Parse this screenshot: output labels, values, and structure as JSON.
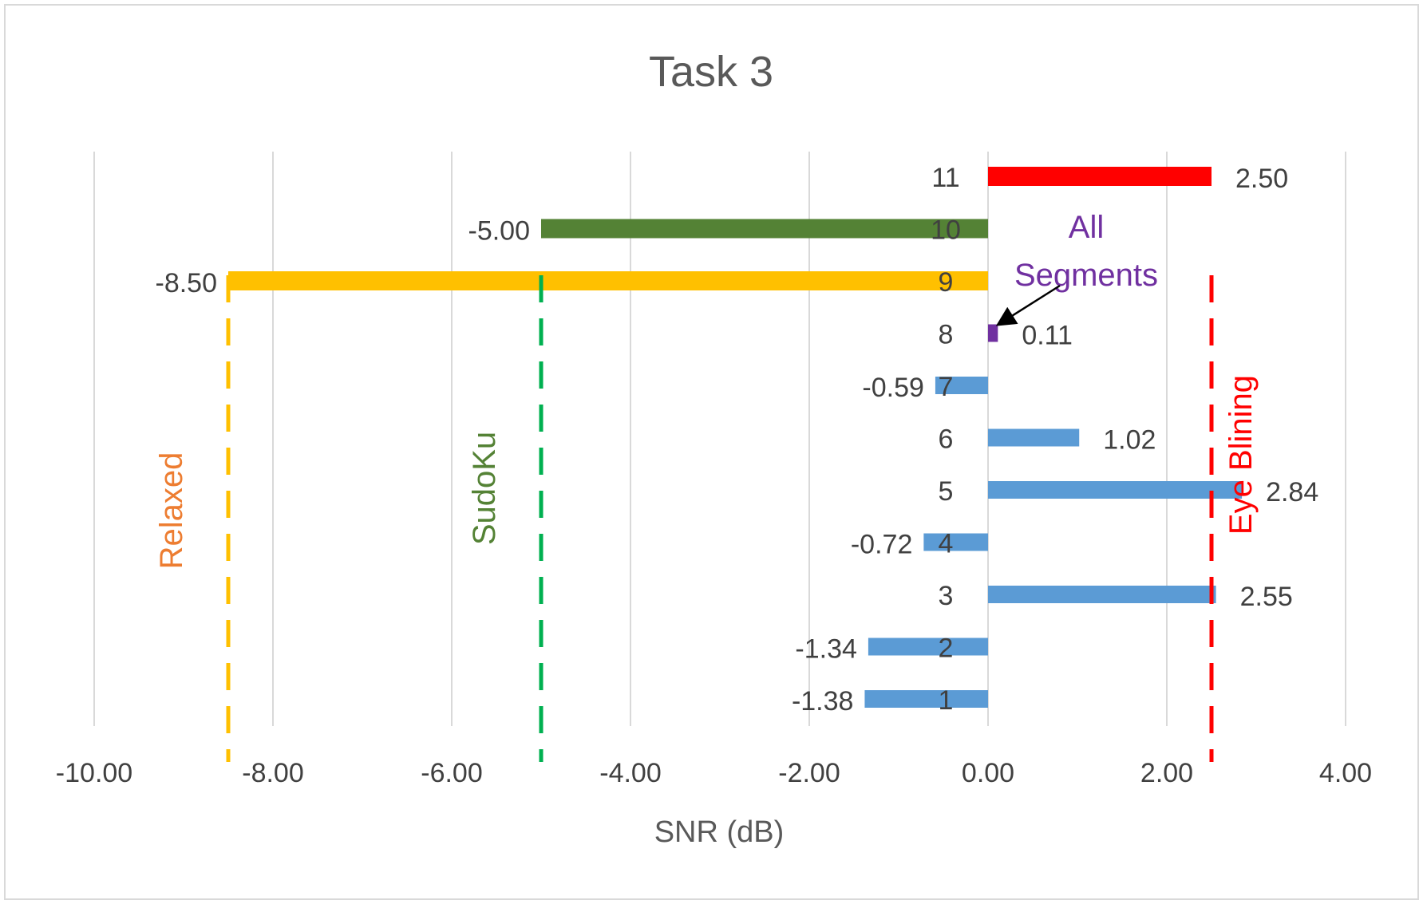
{
  "chart_data": {
    "type": "bar",
    "orientation": "horizontal",
    "title": "Task 3",
    "xlabel": "SNR (dB)",
    "ylabel": "",
    "xlim": [
      -10,
      4
    ],
    "x_ticks": [
      "-10.00",
      "-8.00",
      "-6.00",
      "-4.00",
      "-2.00",
      "0.00",
      "2.00",
      "4.00"
    ],
    "grid": "vertical",
    "legend": "none",
    "bars": [
      {
        "category": "1",
        "value": -1.38,
        "label": "-1.38",
        "color": "#5b9bd5"
      },
      {
        "category": "2",
        "value": -1.34,
        "label": "-1.34",
        "color": "#5b9bd5"
      },
      {
        "category": "3",
        "value": 2.55,
        "label": "2.55",
        "color": "#5b9bd5"
      },
      {
        "category": "4",
        "value": -0.72,
        "label": "-0.72",
        "color": "#5b9bd5"
      },
      {
        "category": "5",
        "value": 2.84,
        "label": "2.84",
        "color": "#5b9bd5"
      },
      {
        "category": "6",
        "value": 1.02,
        "label": "1.02",
        "color": "#5b9bd5"
      },
      {
        "category": "7",
        "value": -0.59,
        "label": "-0.59",
        "color": "#5b9bd5"
      },
      {
        "category": "8",
        "value": 0.11,
        "label": "0.11",
        "color": "#7030a0"
      },
      {
        "category": "9",
        "value": -8.5,
        "label": "-8.50",
        "color": "#ffc000"
      },
      {
        "category": "10",
        "value": -5.0,
        "label": "-5.00",
        "color": "#548235"
      },
      {
        "category": "11",
        "value": 2.5,
        "label": "2.50",
        "color": "#ff0000"
      }
    ],
    "reference_lines": [
      {
        "x": -8.5,
        "label": "Relaxed",
        "line_color": "#ffc000",
        "text_color": "#ed7d31"
      },
      {
        "x": -5.0,
        "label": "SudoKu",
        "line_color": "#00b050",
        "text_color": "#548235"
      },
      {
        "x": 2.5,
        "label": "Eye Blining",
        "line_color": "#ff0000",
        "text_color": "#ff0000"
      }
    ],
    "annotation": {
      "text_lines": [
        "All",
        "Segments"
      ],
      "color": "#7030a0",
      "points_to_category": "8"
    }
  }
}
